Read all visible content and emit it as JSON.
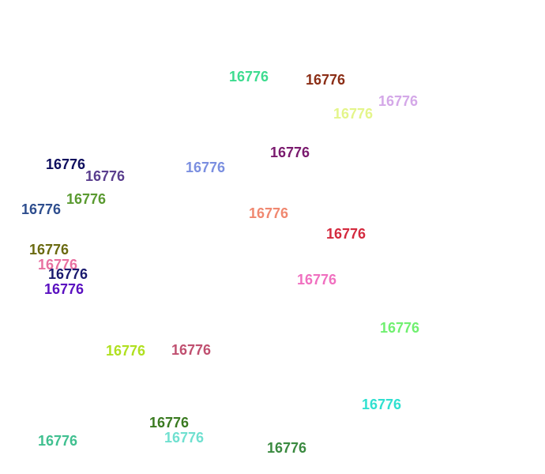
{
  "labels": [
    {
      "text": "16776",
      "color": "#3ddc8f"
    },
    {
      "text": "16776",
      "color": "#8b2e16"
    },
    {
      "text": "16776",
      "color": "#d4a8e8"
    },
    {
      "text": "16776",
      "color": "#e4f58a"
    },
    {
      "text": "16776",
      "color": "#7a1a6e"
    },
    {
      "text": "16776",
      "color": "#0e0e5e"
    },
    {
      "text": "16776",
      "color": "#5a3e8e"
    },
    {
      "text": "16776",
      "color": "#7b8fe0"
    },
    {
      "text": "16776",
      "color": "#5a9a30"
    },
    {
      "text": "16776",
      "color": "#2e4e8e"
    },
    {
      "text": "16776",
      "color": "#f08870"
    },
    {
      "text": "16776",
      "color": "#d42a3e"
    },
    {
      "text": "16776",
      "color": "#6a6a10"
    },
    {
      "text": "16776",
      "color": "#e870a0"
    },
    {
      "text": "16776",
      "color": "#1a1a6e"
    },
    {
      "text": "16776",
      "color": "#5a10c0"
    },
    {
      "text": "16776",
      "color": "#f070c0"
    },
    {
      "text": "16776",
      "color": "#70f070"
    },
    {
      "text": "16776",
      "color": "#b0e020"
    },
    {
      "text": "16776",
      "color": "#c05070"
    },
    {
      "text": "16776",
      "color": "#30e0d0"
    },
    {
      "text": "16776",
      "color": "#3a7a20"
    },
    {
      "text": "16776",
      "color": "#70e0d0"
    },
    {
      "text": "16776",
      "color": "#40c090"
    },
    {
      "text": "16776",
      "color": "#3a8a40"
    }
  ]
}
